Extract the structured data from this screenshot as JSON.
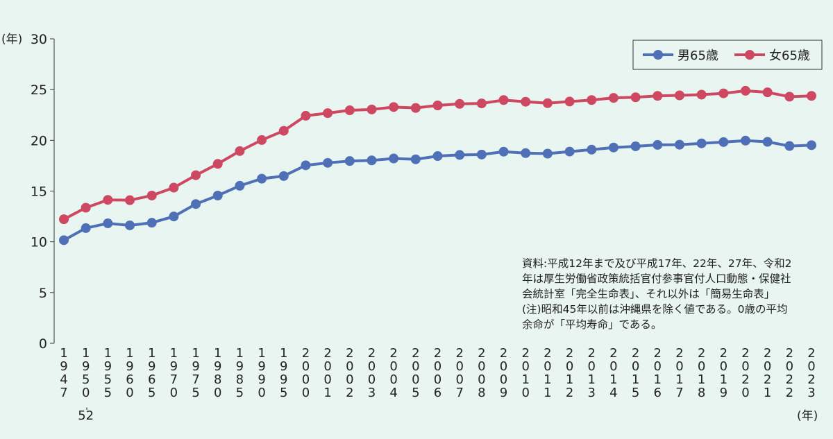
{
  "chart_data": {
    "type": "line",
    "y_axis_label": "(年)",
    "x_axis_label": "(年)",
    "categories": [
      "1947",
      "1950-52",
      "1955",
      "1960",
      "1965",
      "1970",
      "1975",
      "1980",
      "1985",
      "1990",
      "1995",
      "2000",
      "2001",
      "2002",
      "2003",
      "2004",
      "2005",
      "2006",
      "2007",
      "2008",
      "2009",
      "2010",
      "2011",
      "2012",
      "2013",
      "2014",
      "2015",
      "2016",
      "2017",
      "2018",
      "2019",
      "2020",
      "2021",
      "2022",
      "2023"
    ],
    "series": [
      {
        "name": "男65歳",
        "color": "#4f70b6",
        "values": [
          10.16,
          11.35,
          11.82,
          11.62,
          11.88,
          12.5,
          13.72,
          14.56,
          15.52,
          16.22,
          16.48,
          17.54,
          17.78,
          17.96,
          18.02,
          18.21,
          18.13,
          18.45,
          18.56,
          18.6,
          18.88,
          18.74,
          18.69,
          18.89,
          19.08,
          19.29,
          19.41,
          19.55,
          19.57,
          19.7,
          19.83,
          19.97,
          19.85,
          19.44,
          19.52
        ]
      },
      {
        "name": "女65歳",
        "color": "#cf4862",
        "values": [
          12.22,
          13.36,
          14.13,
          14.1,
          14.56,
          15.34,
          16.56,
          17.68,
          18.94,
          20.03,
          20.94,
          22.42,
          22.68,
          22.96,
          23.04,
          23.28,
          23.19,
          23.44,
          23.59,
          23.64,
          23.97,
          23.8,
          23.66,
          23.82,
          23.97,
          24.18,
          24.24,
          24.38,
          24.43,
          24.5,
          24.63,
          24.88,
          24.73,
          24.3,
          24.38
        ]
      }
    ],
    "ylim": [
      0,
      30
    ],
    "yticks": [
      0,
      5,
      10,
      15,
      20,
      25,
      30
    ],
    "legend": "top-right",
    "annotation": [
      "資料:平成12年まで及び平成17年、22年、27年、令和2",
      "年は厚生労働省政策統括官付参事官付人口動態・保健社",
      "会統計室「完全生命表」、それ以外は「簡易生命表」",
      "(注)昭和45年以前は沖縄県を除く値である。0歳の平均",
      "余命が「平均寿命」である。"
    ]
  }
}
